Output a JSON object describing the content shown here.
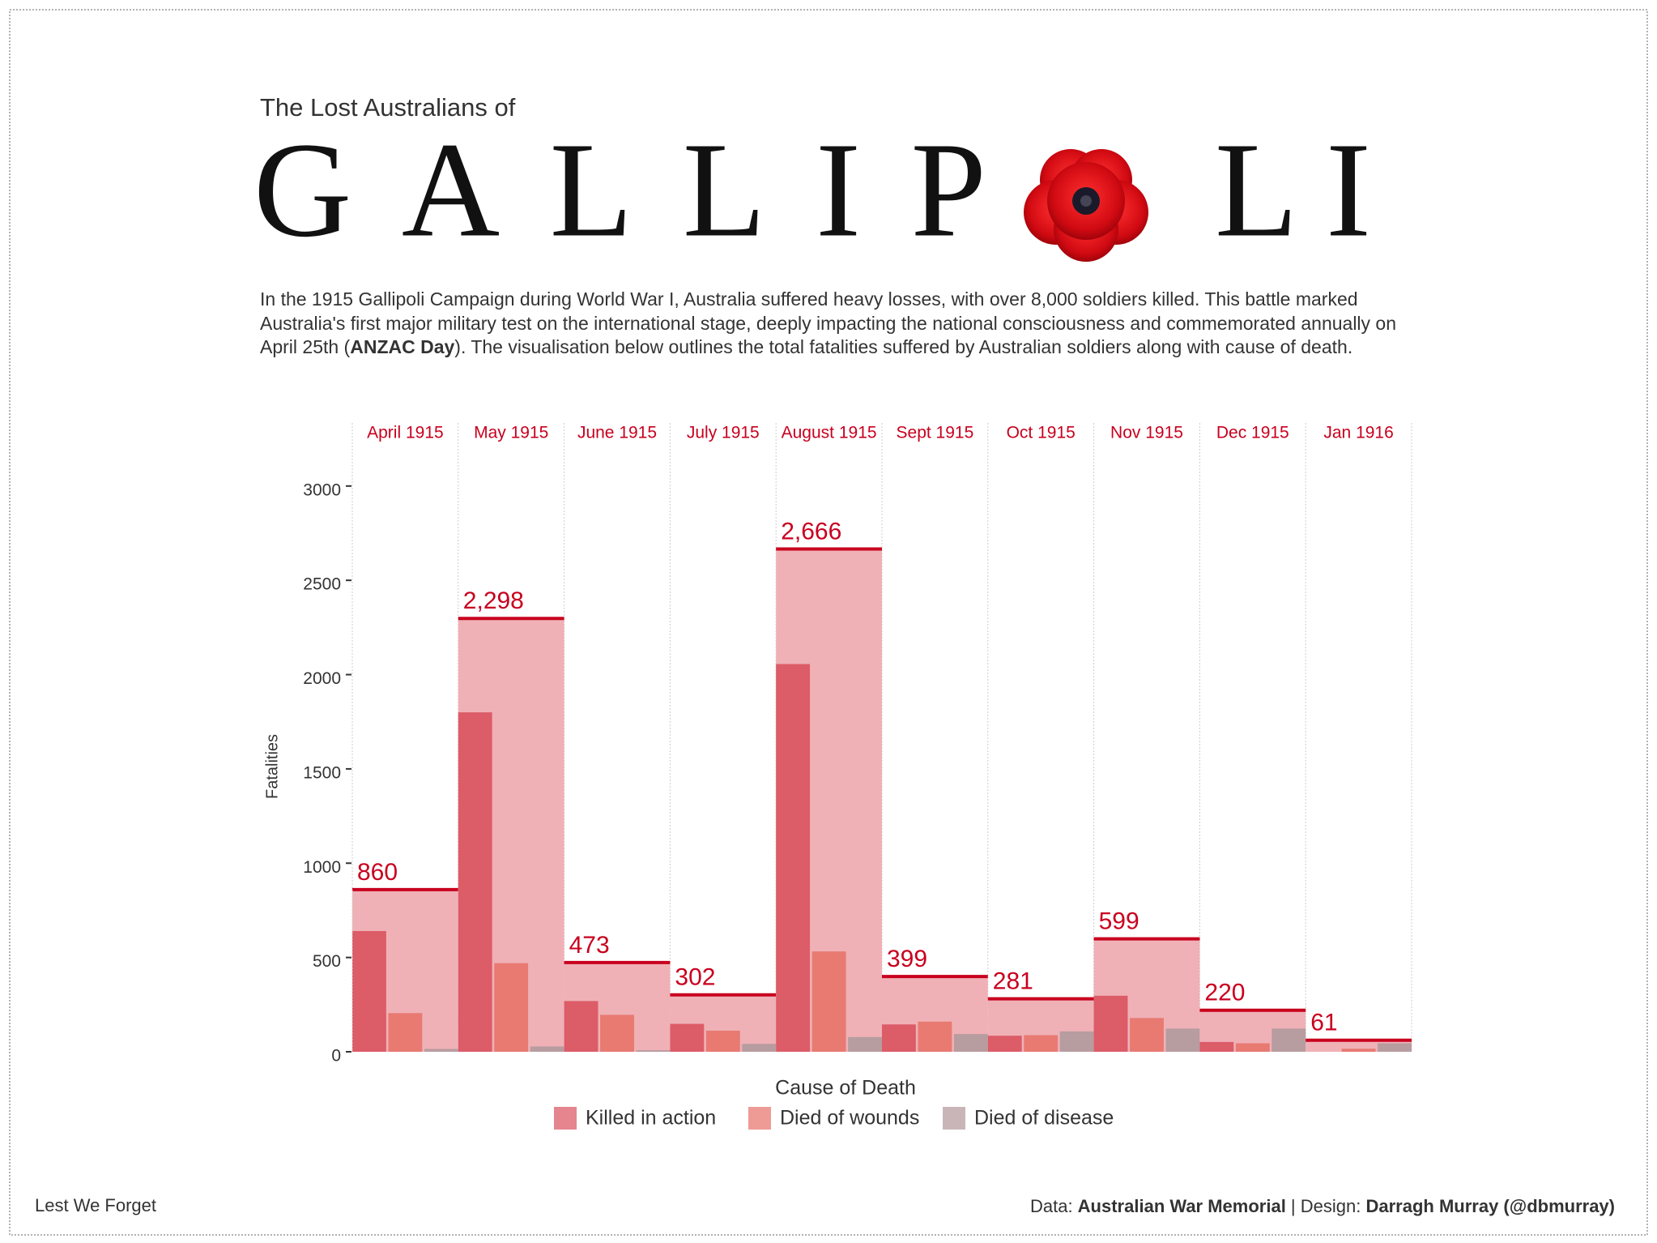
{
  "header": {
    "subtitle": "The Lost Australians of",
    "title_left": "GALLIP",
    "title_right": "LI",
    "description": [
      "In the 1915 Gallipoli Campaign during World War I, Australia suffered heavy losses, with over 8,000 soldiers killed. This battle marked Australia's first major military test on the international stage, deeply impacting the national consciousness and commemorated annually on April 25th (",
      "ANZAC Day",
      "). The visualisation below outlines the total fatalities suffered by Australian soldiers along with cause of death."
    ]
  },
  "chart_data": {
    "type": "bar",
    "y_label": "Fatalities",
    "legend_title": "Cause of Death",
    "categories": [
      "April 1915",
      "May 1915",
      "June 1915",
      "July 1915",
      "August 1915",
      "Sept 1915",
      "Oct 1915",
      "Nov 1915",
      "Dec 1915",
      "Jan 1916"
    ],
    "totals": {
      "color": "#efb1b6",
      "line_color": "#c8001e",
      "values": [
        860,
        2298,
        473,
        302,
        2666,
        399,
        281,
        599,
        220,
        61
      ],
      "value_labels": [
        "860",
        "2,298",
        "473",
        "302",
        "2,666",
        "399",
        "281",
        "599",
        "220",
        "61"
      ]
    },
    "series": [
      {
        "name": "Killed in action",
        "color": "#dc5c68",
        "values": [
          640,
          1800,
          269,
          148,
          2056,
          145,
          85,
          297,
          52,
          0
        ]
      },
      {
        "name": "Died of wounds",
        "color": "#e87a72",
        "values": [
          205,
          470,
          196,
          112,
          532,
          160,
          88,
          179,
          45,
          16
        ]
      },
      {
        "name": "Died of disease",
        "color": "#b79ca0",
        "values": [
          15,
          28,
          8,
          42,
          78,
          94,
          108,
          123,
          123,
          45
        ]
      }
    ],
    "ylim": [
      0,
      3300
    ],
    "yticks": [
      0,
      500,
      1000,
      1500,
      2000,
      2500,
      3000
    ]
  },
  "footer": {
    "left": "Lest We Forget",
    "credits": [
      "Data: ",
      "Australian War Memorial",
      " | Design: ",
      "Darragh Murray (@dbmurray)"
    ]
  }
}
